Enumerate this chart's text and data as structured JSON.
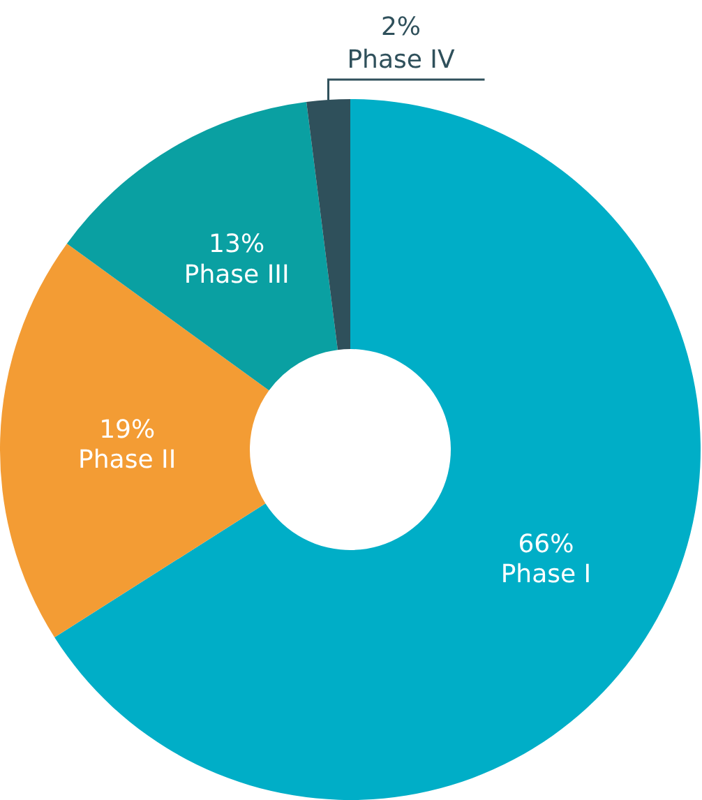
{
  "chart_data": {
    "type": "donut",
    "categories": [
      "Phase I",
      "Phase II",
      "Phase III",
      "Phase IV"
    ],
    "values": [
      66,
      19,
      13,
      2
    ],
    "value_labels": [
      "66%",
      "19%",
      "13%",
      "2%"
    ],
    "colors": [
      "#00aec7",
      "#f39c34",
      "#0aa0a2",
      "#2f505b"
    ]
  }
}
